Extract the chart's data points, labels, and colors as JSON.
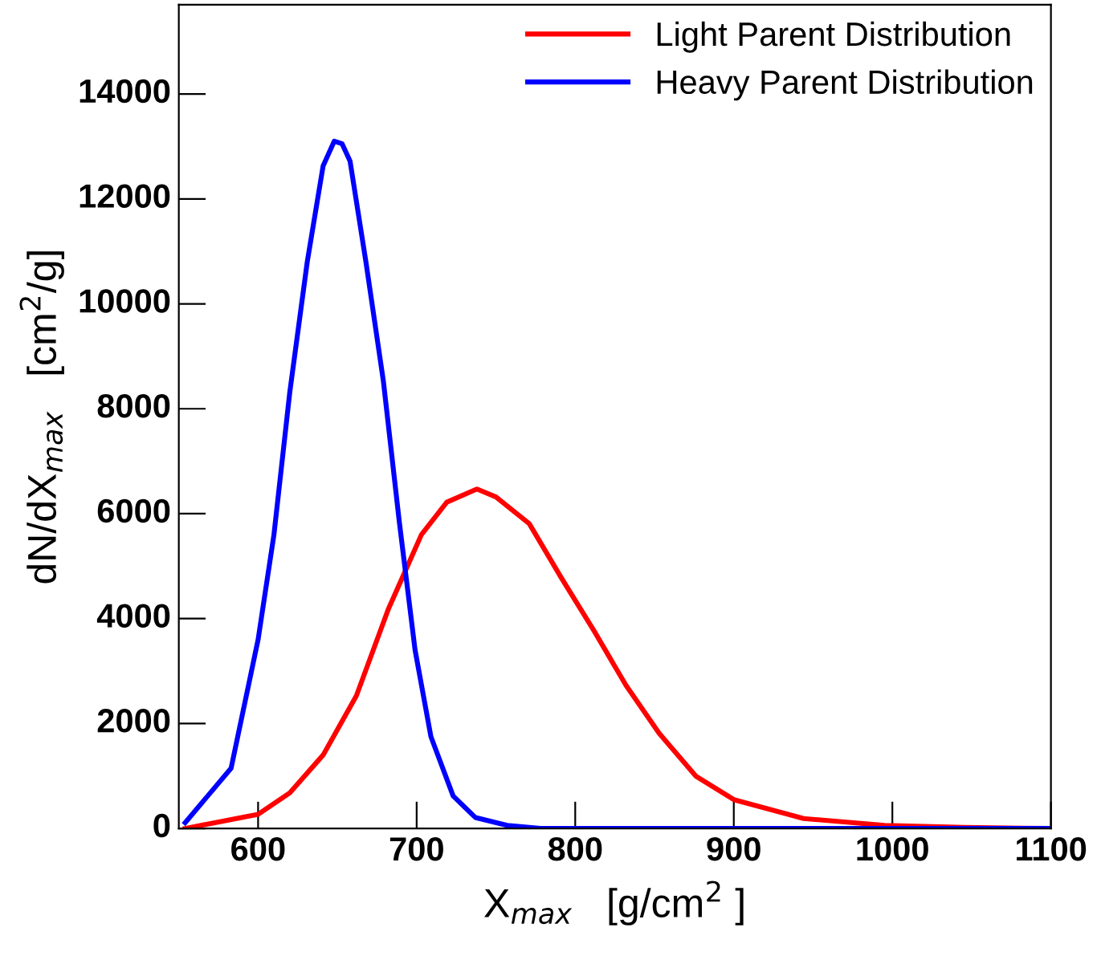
{
  "chart_data": {
    "type": "line",
    "xlabel": "X$_{max}$   [g/cm$^{2}$ ]",
    "ylabel": "dN/dX$_{max}$   [cm$^{2}$/g]",
    "xlim": [
      550,
      1100
    ],
    "xticks": [
      600,
      700,
      800,
      900,
      1000,
      1100
    ],
    "ylim": [
      0,
      15700
    ],
    "yticks": [
      0,
      2000,
      4000,
      6000,
      8000,
      10000,
      12000,
      14000
    ],
    "grid": false,
    "legend": "top right",
    "line_style": "solid",
    "marker": "none",
    "series": [
      {
        "name": "Light Parent Distribution",
        "color": "#ff0000",
        "x": [
          554,
          600,
          620,
          641,
          662,
          682,
          703,
          719,
          738,
          750,
          771,
          791,
          812,
          832,
          853,
          876,
          900,
          944,
          995,
          1045,
          1100
        ],
        "values": [
          0,
          270,
          680,
          1400,
          2530,
          4170,
          5600,
          6220,
          6470,
          6320,
          5810,
          4790,
          3760,
          2730,
          1810,
          1000,
          550,
          190,
          60,
          20,
          0
        ]
      },
      {
        "name": "Heavy Parent Distribution",
        "color": "#0000ff",
        "x": [
          554,
          583,
          600,
          610,
          620,
          631,
          641,
          648,
          653,
          658,
          668,
          679,
          689,
          699,
          709,
          723,
          737,
          757,
          778,
          850,
          1000,
          1100
        ],
        "values": [
          110,
          1150,
          3600,
          5600,
          8320,
          10800,
          12630,
          13100,
          13050,
          12720,
          10800,
          8530,
          5860,
          3400,
          1750,
          620,
          210,
          60,
          0,
          0,
          0,
          0
        ]
      }
    ]
  }
}
